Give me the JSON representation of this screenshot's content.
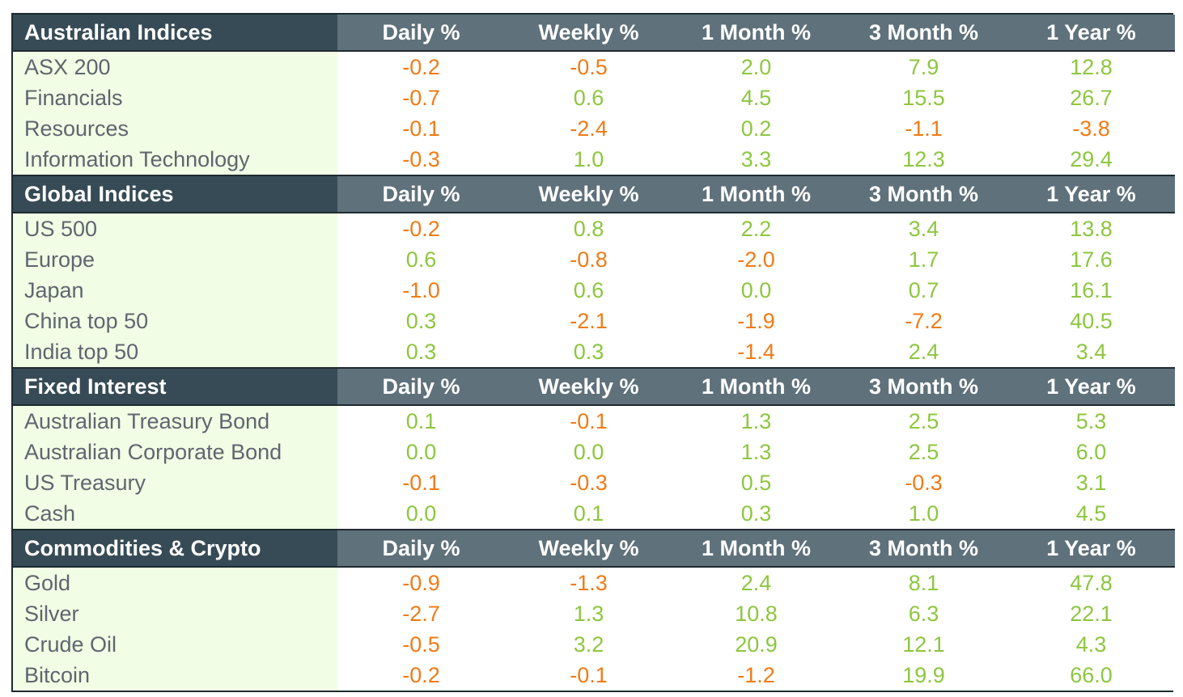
{
  "columns": [
    "Daily %",
    "Weekly %",
    "1 Month %",
    "3 Month %",
    "1 Year %"
  ],
  "colors": {
    "positive": "#8dc63f",
    "negative": "#f07b16",
    "header_dark": "#374b56",
    "header_light": "#5f717b",
    "name_bg": "#f1fde4"
  },
  "sections": [
    {
      "title": "Australian Indices",
      "rows": [
        {
          "name": "ASX 200",
          "values": [
            "-0.2",
            "-0.5",
            "2.0",
            "7.9",
            "12.8"
          ]
        },
        {
          "name": "Financials",
          "values": [
            "-0.7",
            "0.6",
            "4.5",
            "15.5",
            "26.7"
          ]
        },
        {
          "name": "Resources",
          "values": [
            "-0.1",
            "-2.4",
            "0.2",
            "-1.1",
            "-3.8"
          ]
        },
        {
          "name": "Information Technology",
          "values": [
            "-0.3",
            "1.0",
            "3.3",
            "12.3",
            "29.4"
          ]
        }
      ]
    },
    {
      "title": "Global Indices",
      "rows": [
        {
          "name": "US 500",
          "values": [
            "-0.2",
            "0.8",
            "2.2",
            "3.4",
            "13.8"
          ]
        },
        {
          "name": "Europe",
          "values": [
            "0.6",
            "-0.8",
            "-2.0",
            "1.7",
            "17.6"
          ]
        },
        {
          "name": "Japan",
          "values": [
            "-1.0",
            "0.6",
            "0.0",
            "0.7",
            "16.1"
          ]
        },
        {
          "name": "China top 50",
          "values": [
            "0.3",
            "-2.1",
            "-1.9",
            "-7.2",
            "40.5"
          ]
        },
        {
          "name": "India top 50",
          "values": [
            "0.3",
            "0.3",
            "-1.4",
            "2.4",
            "3.4"
          ]
        }
      ]
    },
    {
      "title": "Fixed Interest",
      "rows": [
        {
          "name": "Australian Treasury Bond",
          "values": [
            "0.1",
            "-0.1",
            "1.3",
            "2.5",
            "5.3"
          ]
        },
        {
          "name": "Australian Corporate Bond",
          "values": [
            "0.0",
            "0.0",
            "1.3",
            "2.5",
            "6.0"
          ]
        },
        {
          "name": "US Treasury",
          "values": [
            "-0.1",
            "-0.3",
            "0.5",
            "-0.3",
            "3.1"
          ]
        },
        {
          "name": "Cash",
          "values": [
            "0.0",
            "0.1",
            "0.3",
            "1.0",
            "4.5"
          ]
        }
      ]
    },
    {
      "title": "Commodities & Crypto",
      "rows": [
        {
          "name": "Gold",
          "values": [
            "-0.9",
            "-1.3",
            "2.4",
            "8.1",
            "47.8"
          ]
        },
        {
          "name": "Silver",
          "values": [
            "-2.7",
            "1.3",
            "10.8",
            "6.3",
            "22.1"
          ]
        },
        {
          "name": "Crude Oil",
          "values": [
            "-0.5",
            "3.2",
            "20.9",
            "12.1",
            "4.3"
          ]
        },
        {
          "name": "Bitcoin",
          "values": [
            "-0.2",
            "-0.1",
            "-1.2",
            "19.9",
            "66.0"
          ]
        }
      ]
    }
  ]
}
